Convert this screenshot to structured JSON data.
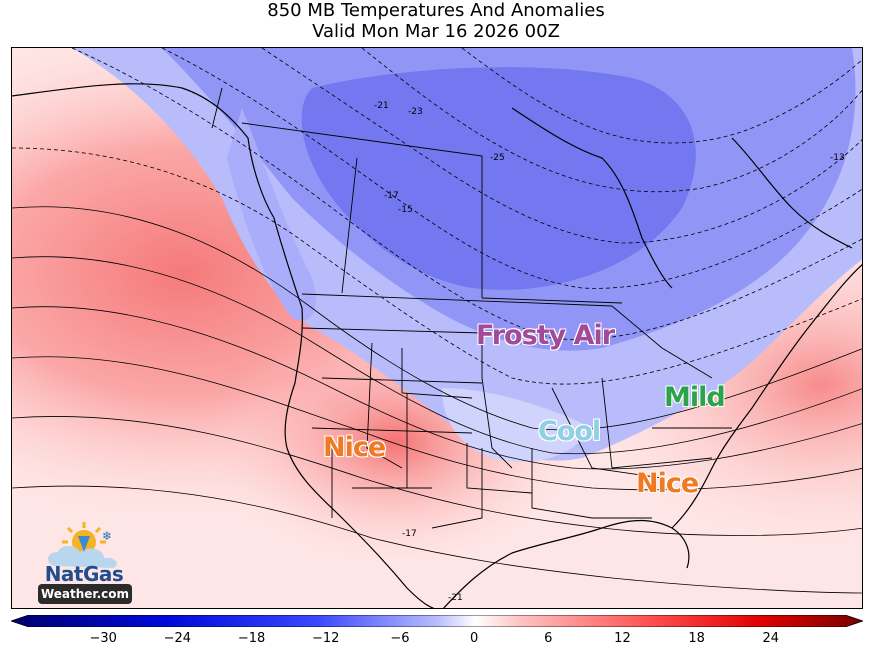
{
  "title": {
    "line1": "850 MB Temperatures And Anomalies",
    "line2": "Valid Mon Mar 16 2026 00Z"
  },
  "map": {
    "type": "weather-map",
    "region": "North America",
    "annotations": [
      {
        "id": "frosty-air",
        "text": "Frosty Air",
        "color": "#a24a97"
      },
      {
        "id": "mild",
        "text": "Mild",
        "color": "#2aa34a"
      },
      {
        "id": "cool",
        "text": "Cool",
        "color": "#8fd0e2"
      },
      {
        "id": "nice-west",
        "text": "Nice",
        "color": "#ef7a22"
      },
      {
        "id": "nice-southeast",
        "text": "Nice",
        "color": "#ef7a22"
      }
    ],
    "contour_labels": [
      "-21",
      "-23",
      "-25",
      "-17",
      "-15",
      "-13",
      "-17",
      "-21"
    ]
  },
  "colorbar": {
    "ticks": [
      "−30",
      "−24",
      "−18",
      "−12",
      "−6",
      "0",
      "6",
      "12",
      "18",
      "24"
    ],
    "range": [
      -36,
      30
    ],
    "colors": {
      "cold_extreme": "#00006e",
      "cold": "#1e2cff",
      "cool": "#8c94ff",
      "neutral": "#ffffff",
      "warm": "#ff8c8c",
      "hot": "#ff1010",
      "hot_extreme": "#780000"
    }
  },
  "logo": {
    "top": "NatGas",
    "bottom": "Weather.com"
  }
}
